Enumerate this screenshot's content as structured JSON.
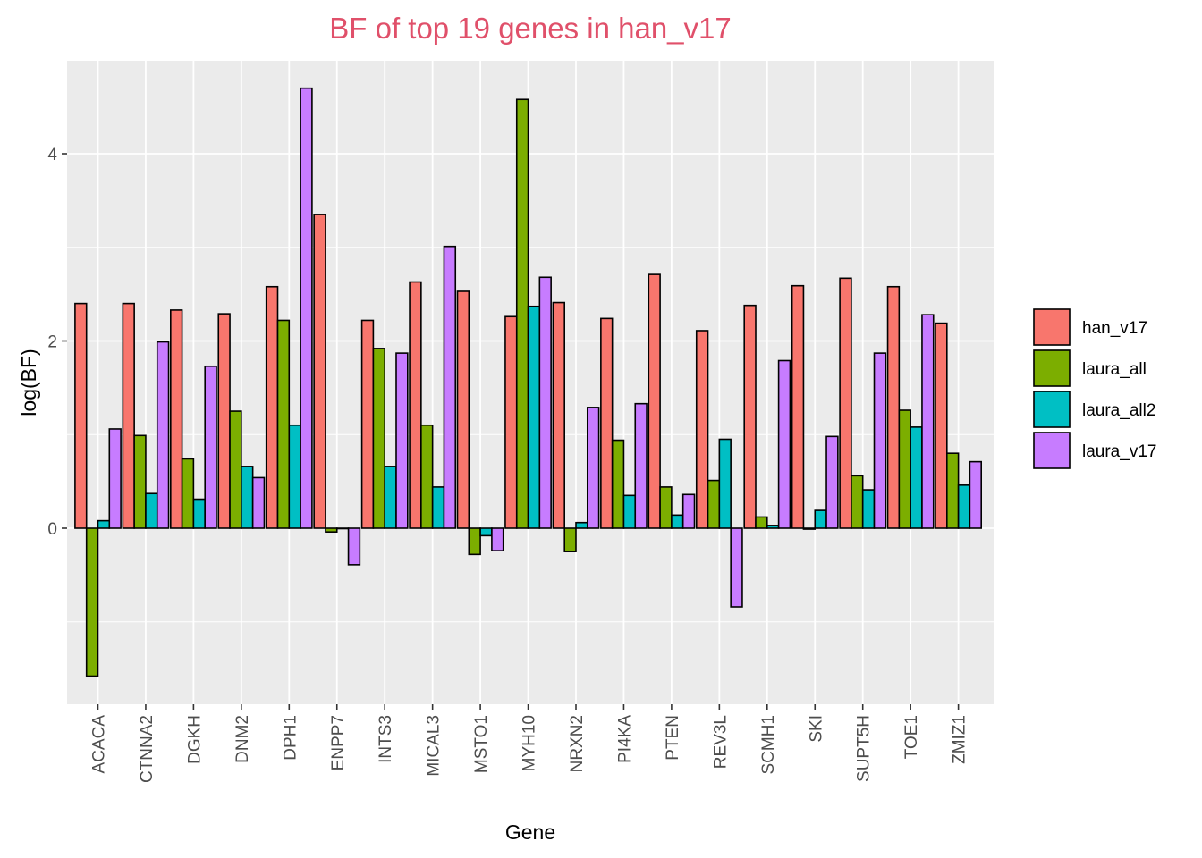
{
  "chart_data": {
    "type": "bar",
    "title": "BF of top 19 genes in han_v17",
    "title_color": "#e0506a",
    "xlabel": "Gene",
    "ylabel": "log(BF)",
    "ylim": [
      -1.9,
      5.0
    ],
    "yticks": [
      0,
      2,
      4
    ],
    "grid": true,
    "legend_position": "right",
    "panel_background": "#ebebeb",
    "categories": [
      "ACACA",
      "CTNNA2",
      "DGKH",
      "DNM2",
      "DPH1",
      "ENPP7",
      "INTS3",
      "MICAL3",
      "MSTO1",
      "MYH10",
      "NRXN2",
      "PI4KA",
      "PTEN",
      "REV3L",
      "SCMH1",
      "SKI",
      "SUPT5H",
      "TOE1",
      "ZMIZ1"
    ],
    "series": [
      {
        "name": "han_v17",
        "color": "#F8766D",
        "values": [
          2.4,
          2.4,
          2.33,
          2.29,
          2.58,
          3.35,
          2.22,
          2.63,
          2.53,
          2.26,
          2.41,
          2.24,
          2.71,
          2.11,
          2.38,
          2.59,
          2.67,
          2.58,
          2.19
        ]
      },
      {
        "name": "laura_all",
        "color": "#7CAE00",
        "values": [
          -1.58,
          0.99,
          0.74,
          1.25,
          2.22,
          -0.04,
          1.92,
          1.1,
          -0.28,
          4.58,
          -0.25,
          0.94,
          0.44,
          0.51,
          0.12,
          -0.01,
          0.56,
          1.26,
          0.8
        ]
      },
      {
        "name": "laura_all2",
        "color": "#00BFC4",
        "values": [
          0.08,
          0.37,
          0.31,
          0.66,
          1.1,
          0.0,
          0.66,
          0.44,
          -0.08,
          2.37,
          0.06,
          0.35,
          0.14,
          0.95,
          0.03,
          0.19,
          0.41,
          1.08,
          0.46
        ]
      },
      {
        "name": "laura_v17",
        "color": "#C77CFF",
        "values": [
          1.06,
          1.99,
          1.73,
          0.54,
          4.7,
          -0.39,
          1.87,
          3.01,
          -0.24,
          2.68,
          1.29,
          1.33,
          0.36,
          -0.84,
          1.79,
          0.98,
          1.87,
          2.28,
          0.71
        ]
      }
    ]
  }
}
